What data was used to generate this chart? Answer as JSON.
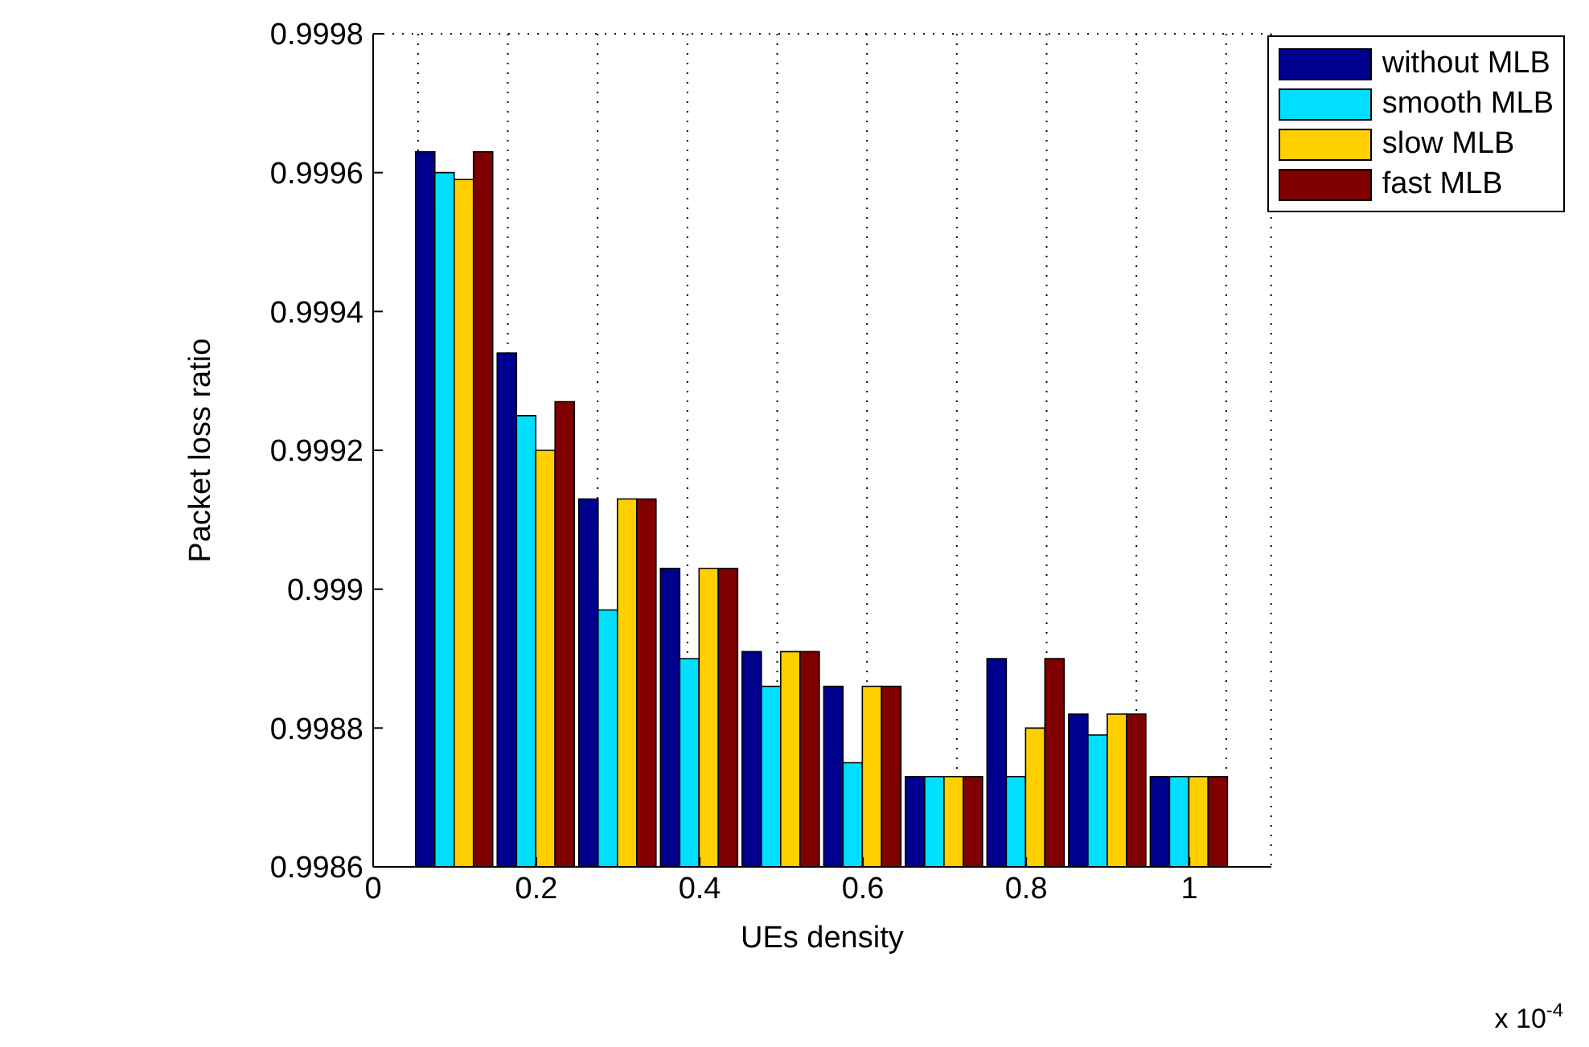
{
  "chart_data": {
    "type": "bar",
    "xlabel": "UEs density",
    "ylabel": "Packet loss ratio",
    "x": [
      0.1,
      0.2,
      0.3,
      0.4,
      0.5,
      0.6,
      0.7,
      0.8,
      0.9,
      1.0
    ],
    "series": [
      {
        "name": "without MLB",
        "color": "#00008f",
        "values": [
          0.99963,
          0.99934,
          0.99913,
          0.99903,
          0.99891,
          0.99886,
          0.99873,
          0.9989,
          0.99882,
          0.99873
        ]
      },
      {
        "name": "smooth MLB",
        "color": "#00dfff",
        "values": [
          0.9996,
          0.99925,
          0.99897,
          0.9989,
          0.99886,
          0.99875,
          0.99873,
          0.99873,
          0.99879,
          0.99873
        ]
      },
      {
        "name": "slow MLB",
        "color": "#ffcf00",
        "values": [
          0.99959,
          0.9992,
          0.99913,
          0.99903,
          0.99891,
          0.99886,
          0.99873,
          0.9988,
          0.99882,
          0.99873
        ]
      },
      {
        "name": "fast MLB",
        "color": "#800000",
        "values": [
          0.99963,
          0.99927,
          0.99913,
          0.99903,
          0.99891,
          0.99886,
          0.99873,
          0.9989,
          0.99882,
          0.99873
        ]
      }
    ],
    "xlim": [
      0,
      1.1
    ],
    "xticks": [
      0,
      0.2,
      0.4,
      0.6,
      0.8,
      1
    ],
    "ylim": [
      0.9986,
      0.9998
    ],
    "yticks": [
      0.9986,
      0.9988,
      0.999,
      0.9992,
      0.9994,
      0.9996,
      0.9998
    ],
    "grid": true,
    "legend": "top right",
    "annotations": [
      "x 10$^{-4}$"
    ]
  }
}
